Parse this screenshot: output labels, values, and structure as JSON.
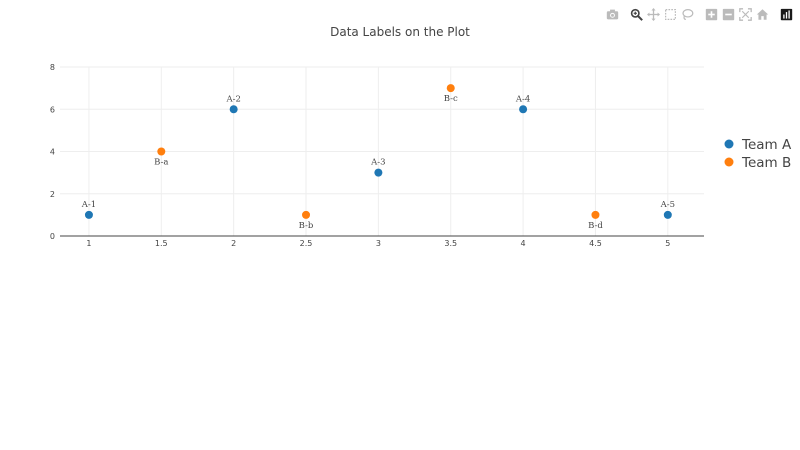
{
  "chart_data": {
    "type": "scatter",
    "title": "Data Labels on the Plot",
    "xlabel": "",
    "ylabel": "",
    "xlim": [
      0.8,
      5.25
    ],
    "ylim": [
      0,
      8
    ],
    "x_ticks": [
      "1",
      "1.5",
      "2",
      "2.5",
      "3",
      "3.5",
      "4",
      "4.5",
      "5"
    ],
    "y_ticks": [
      "0",
      "2",
      "4",
      "6",
      "8"
    ],
    "grid": true,
    "legend_placement": "right",
    "series": [
      {
        "name": "Team A",
        "color": "#1f77b4",
        "label_position": "top",
        "points": [
          {
            "x": 1,
            "y": 1,
            "label": "A-1"
          },
          {
            "x": 2,
            "y": 6,
            "label": "A-2"
          },
          {
            "x": 3,
            "y": 3,
            "label": "A-3"
          },
          {
            "x": 4,
            "y": 6,
            "label": "A-4"
          },
          {
            "x": 5,
            "y": 1,
            "label": "A-5"
          }
        ]
      },
      {
        "name": "Team B",
        "color": "#ff7f0e",
        "label_position": "bottom",
        "points": [
          {
            "x": 1.5,
            "y": 4,
            "label": "B-a"
          },
          {
            "x": 2.5,
            "y": 1,
            "label": "B-b"
          },
          {
            "x": 3.5,
            "y": 7,
            "label": "B-c"
          },
          {
            "x": 4.5,
            "y": 1,
            "label": "B-d"
          }
        ]
      }
    ]
  },
  "modebar": {
    "icons": [
      "camera-icon",
      "zoom-icon",
      "pan-icon",
      "box-select-icon",
      "lasso-icon",
      "zoom-in-icon",
      "zoom-out-icon",
      "autoscale-icon",
      "reset-axes-icon",
      "plotly-logo-icon"
    ]
  }
}
